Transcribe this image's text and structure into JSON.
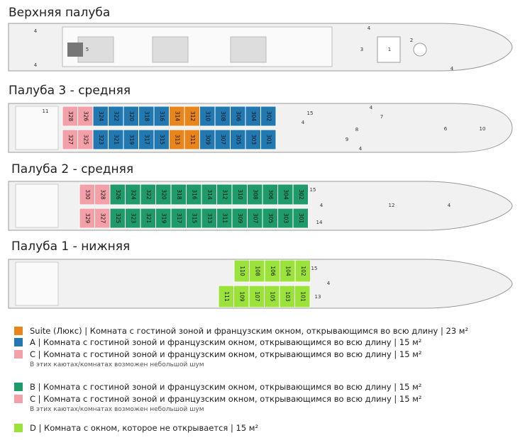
{
  "decks": [
    {
      "title": "Верхняя палуба",
      "labels": [
        "4",
        "4",
        "5",
        "3",
        "1",
        "2",
        "4",
        "4"
      ]
    },
    {
      "title": "Палуба 3 - средняя",
      "top_cabins": [
        {
          "color": "#f4a0a8",
          "numbers": [
            "328",
            "326"
          ]
        },
        {
          "color": "#2278b0",
          "numbers": [
            "324",
            "322",
            "320",
            "318",
            "316"
          ]
        },
        {
          "color": "#e8861c",
          "numbers": [
            "314",
            "312"
          ]
        },
        {
          "color": "#2278b0",
          "numbers": [
            "310",
            "308",
            "306",
            "304",
            "302"
          ]
        }
      ],
      "bottom_cabins": [
        {
          "color": "#f4a0a8",
          "numbers": [
            "327",
            "325"
          ]
        },
        {
          "color": "#2278b0",
          "numbers": [
            "323",
            "321",
            "319",
            "317",
            "315"
          ]
        },
        {
          "color": "#e8861c",
          "numbers": [
            "313",
            "311"
          ]
        },
        {
          "color": "#2278b0",
          "numbers": [
            "309",
            "307",
            "305",
            "303",
            "301"
          ]
        }
      ],
      "labels": [
        "11",
        "15",
        "4",
        "4",
        "7",
        "8",
        "6",
        "10",
        "9",
        "4"
      ]
    },
    {
      "title": "Палуба 2 - средняя",
      "top_cabins": [
        {
          "color": "#f4a0a8",
          "numbers": [
            "330",
            "328"
          ]
        },
        {
          "color": "#1f9a6a",
          "numbers": [
            "326",
            "324",
            "322",
            "320",
            "318",
            "316",
            "314",
            "312",
            "310",
            "308",
            "306",
            "304",
            "302"
          ]
        }
      ],
      "bottom_cabins": [
        {
          "color": "#f4a0a8",
          "numbers": [
            "329",
            "327"
          ]
        },
        {
          "color": "#1f9a6a",
          "numbers": [
            "325",
            "323",
            "321",
            "319",
            "317",
            "315",
            "313",
            "311",
            "309",
            "307",
            "305",
            "303",
            "301"
          ]
        }
      ],
      "labels": [
        "15",
        "4",
        "12",
        "4",
        "14"
      ]
    },
    {
      "title": "Палуба 1 - нижняя",
      "top_cabins": [
        {
          "color": "#9be33a",
          "numbers": [
            "110",
            "108",
            "106",
            "104",
            "102"
          ]
        }
      ],
      "bottom_cabins": [
        {
          "color": "#9be33a",
          "numbers": [
            "111",
            "109",
            "107",
            "105",
            "103",
            "101"
          ]
        }
      ],
      "labels": [
        "15",
        "4",
        "13"
      ]
    }
  ],
  "legend": [
    {
      "color": "#e8861c",
      "text": "Suite (Люкс) | Комната с гостиной зоной и французским окном, открывающимся во всю длину | 23 м²"
    },
    {
      "color": "#2278b0",
      "text": "A | Комната с гостиной зоной и французским окном, открывающимся во всю длину | 15 м²"
    },
    {
      "color": "#f4a0a8",
      "text": "C | Комната с гостиной зоной и французским окном, открывающимся во всю длину | 15 м²",
      "note": "В этих каютах/комнатах возможен небольшой шум"
    },
    {
      "color": "#1f9a6a",
      "text": "B | Комната с гостиной зоной и французским окном, открывающимся во всю длину | 15 м²"
    },
    {
      "color": "#f4a0a8",
      "text": "C | Комната с гостиной зоной и французским окном, открывающимся во всю длину | 15 м²",
      "note": "В этих каютах/комнатах возможен небольшой шум"
    },
    {
      "color": "#9be33a",
      "text": "D | Комната с окном, которое не открывается | 15 м²"
    }
  ]
}
